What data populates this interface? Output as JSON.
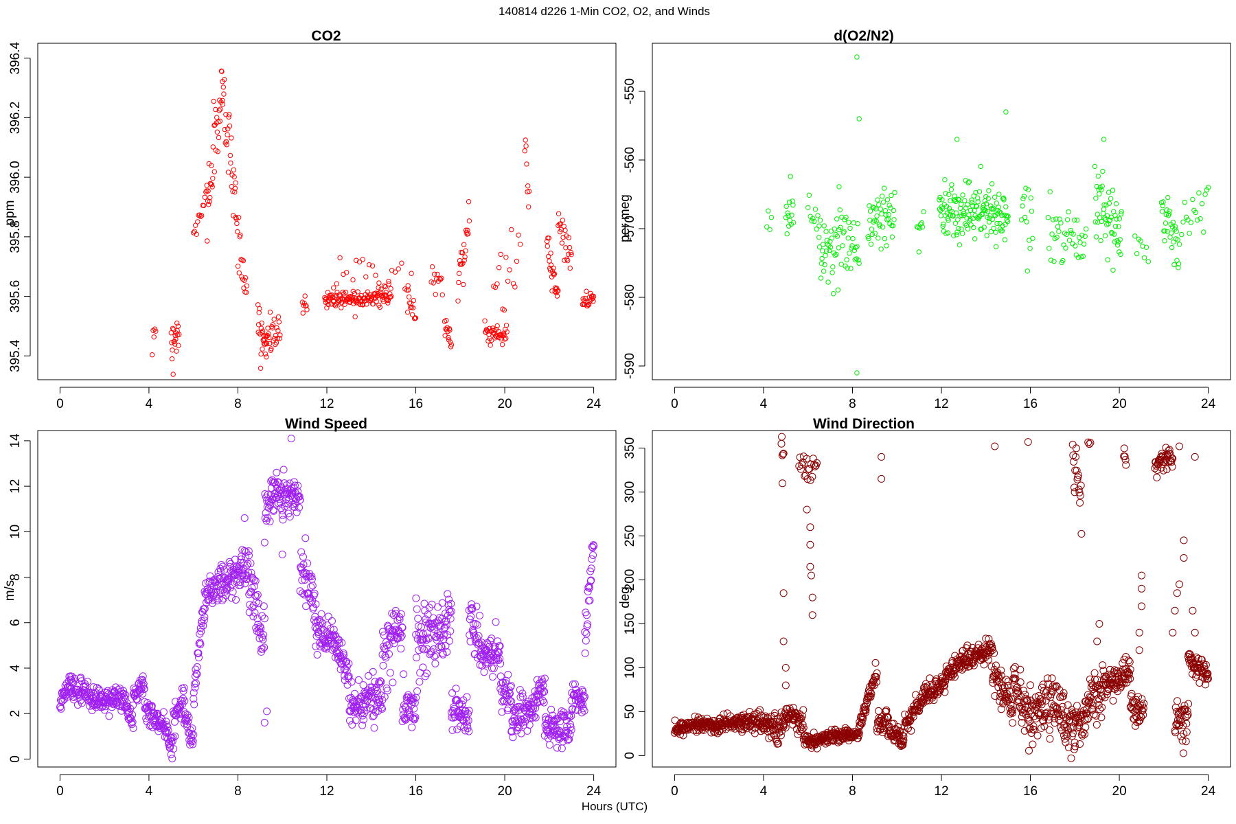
{
  "figure": {
    "suptitle": "140814   d226   1-Min CO2, O2, and Winds",
    "xlabel": "Hours (UTC)"
  },
  "chart_data": [
    {
      "type": "scatter",
      "title": "CO2",
      "ylabel": "ppm",
      "xlabel": "",
      "xlim": [
        -1,
        25
      ],
      "ylim": [
        395.32,
        396.45
      ],
      "xticks": [
        0,
        4,
        8,
        12,
        16,
        20,
        24
      ],
      "yticks": [
        395.4,
        395.6,
        395.8,
        396.0,
        396.2,
        396.4
      ],
      "ytick_labels": [
        "395.4",
        "395.6",
        "395.8",
        "396.0",
        "396.2",
        "396.4"
      ],
      "color": "#ff0000",
      "grid": false,
      "segments": [
        {
          "t0": 4.15,
          "t1": 4.3,
          "v0": 395.47,
          "v1": 395.5,
          "noise": 0.04,
          "n": 5
        },
        {
          "t0": 5.0,
          "t1": 5.35,
          "v0": 395.43,
          "v1": 395.5,
          "noise": 0.06,
          "n": 20
        },
        {
          "t0": 6.0,
          "t1": 6.6,
          "v0": 395.78,
          "v1": 395.95,
          "noise": 0.06,
          "n": 14
        },
        {
          "t0": 6.6,
          "t1": 7.3,
          "v0": 395.9,
          "v1": 396.3,
          "noise": 0.1,
          "n": 35
        },
        {
          "t0": 7.3,
          "t1": 7.9,
          "v0": 396.28,
          "v1": 395.95,
          "noise": 0.1,
          "n": 28
        },
        {
          "t0": 7.9,
          "t1": 8.4,
          "v0": 395.85,
          "v1": 395.62,
          "noise": 0.08,
          "n": 20
        },
        {
          "t0": 8.9,
          "t1": 9.3,
          "v0": 395.5,
          "v1": 395.43,
          "noise": 0.05,
          "n": 25
        },
        {
          "t0": 9.3,
          "t1": 9.9,
          "v0": 395.48,
          "v1": 395.47,
          "noise": 0.05,
          "n": 25
        },
        {
          "t0": 10.9,
          "t1": 11.1,
          "v0": 395.57,
          "v1": 395.58,
          "noise": 0.03,
          "n": 8
        },
        {
          "t0": 11.9,
          "t1": 14.9,
          "v0": 395.59,
          "v1": 395.6,
          "noise": 0.025,
          "n": 130
        },
        {
          "t0": 12.3,
          "t1": 15.8,
          "v0": 395.66,
          "v1": 395.67,
          "noise": 0.06,
          "n": 25
        },
        {
          "t0": 15.6,
          "t1": 16.0,
          "v0": 395.6,
          "v1": 395.54,
          "noise": 0.03,
          "n": 14
        },
        {
          "t0": 16.7,
          "t1": 17.2,
          "v0": 395.64,
          "v1": 395.67,
          "noise": 0.06,
          "n": 12
        },
        {
          "t0": 17.3,
          "t1": 17.6,
          "v0": 395.5,
          "v1": 395.46,
          "noise": 0.03,
          "n": 14
        },
        {
          "t0": 17.9,
          "t1": 18.4,
          "v0": 395.65,
          "v1": 395.85,
          "noise": 0.07,
          "n": 22
        },
        {
          "t0": 19.1,
          "t1": 20.1,
          "v0": 395.48,
          "v1": 395.47,
          "noise": 0.03,
          "n": 40
        },
        {
          "t0": 19.5,
          "t1": 20.7,
          "v0": 395.6,
          "v1": 395.78,
          "noise": 0.1,
          "n": 16
        },
        {
          "t0": 20.9,
          "t1": 21.1,
          "v0": 396.1,
          "v1": 395.95,
          "noise": 0.08,
          "n": 8
        },
        {
          "t0": 21.9,
          "t1": 22.4,
          "v0": 395.75,
          "v1": 395.6,
          "noise": 0.05,
          "n": 25
        },
        {
          "t0": 22.4,
          "t1": 23.0,
          "v0": 395.85,
          "v1": 395.7,
          "noise": 0.07,
          "n": 22
        },
        {
          "t0": 23.5,
          "t1": 24.0,
          "v0": 395.58,
          "v1": 395.6,
          "noise": 0.02,
          "n": 22
        }
      ]
    },
    {
      "type": "scatter",
      "title": "d(O2/N2)",
      "ylabel": "per meg",
      "xlabel": "",
      "xlim": [
        -1,
        25
      ],
      "ylim": [
        -592,
        -543
      ],
      "xticks": [
        0,
        4,
        8,
        12,
        16,
        20,
        24
      ],
      "yticks": [
        -590,
        -580,
        -570,
        -560,
        -550
      ],
      "ytick_labels": [
        "-590",
        "-580",
        "-570",
        "-560",
        "-550"
      ],
      "color": "#00ee00",
      "grid": false,
      "segments": [
        {
          "t0": 4.15,
          "t1": 4.35,
          "v0": -569,
          "v1": -569,
          "noise": 2,
          "n": 4
        },
        {
          "t0": 5.0,
          "t1": 5.35,
          "v0": -568,
          "v1": -567,
          "noise": 3,
          "n": 14
        },
        {
          "t0": 6.0,
          "t1": 6.5,
          "v0": -567,
          "v1": -569,
          "noise": 3,
          "n": 10
        },
        {
          "t0": 6.5,
          "t1": 7.4,
          "v0": -572,
          "v1": -574,
          "noise": 4,
          "n": 36
        },
        {
          "t0": 7.4,
          "t1": 8.3,
          "v0": -570,
          "v1": -572,
          "noise": 5,
          "n": 30
        },
        {
          "t0": 8.7,
          "t1": 9.9,
          "v0": -570,
          "v1": -567,
          "noise": 4.5,
          "n": 46
        },
        {
          "t0": 10.9,
          "t1": 11.2,
          "v0": -569,
          "v1": -571,
          "noise": 3,
          "n": 8
        },
        {
          "t0": 11.9,
          "t1": 15.0,
          "v0": -567,
          "v1": -568,
          "noise": 3.5,
          "n": 150
        },
        {
          "t0": 15.6,
          "t1": 16.1,
          "v0": -567,
          "v1": -569,
          "noise": 3.5,
          "n": 14
        },
        {
          "t0": 16.8,
          "t1": 18.5,
          "v0": -570,
          "v1": -571,
          "noise": 3,
          "n": 40
        },
        {
          "t0": 18.9,
          "t1": 20.1,
          "v0": -567,
          "v1": -571,
          "noise": 3.5,
          "n": 55
        },
        {
          "t0": 20.7,
          "t1": 21.3,
          "v0": -572,
          "v1": -574,
          "noise": 2,
          "n": 8
        },
        {
          "t0": 21.9,
          "t1": 22.7,
          "v0": -567,
          "v1": -573,
          "noise": 4,
          "n": 32
        },
        {
          "t0": 22.8,
          "t1": 24.0,
          "v0": -570,
          "v1": -566,
          "noise": 3,
          "n": 18
        }
      ],
      "outliers": [
        [
          8.2,
          -545
        ],
        [
          8.3,
          -554
        ],
        [
          8.2,
          -591
        ],
        [
          14.9,
          -553
        ],
        [
          19.3,
          -557
        ],
        [
          12.7,
          -557
        ]
      ]
    },
    {
      "type": "scatter",
      "title": "Wind Speed",
      "ylabel": "m/s",
      "xlabel": "",
      "xlim": [
        -1,
        25
      ],
      "ylim": [
        -0.35,
        14.45
      ],
      "xticks": [
        0,
        4,
        8,
        12,
        16,
        20,
        24
      ],
      "yticks": [
        0,
        2,
        4,
        6,
        8,
        10,
        12,
        14
      ],
      "ytick_labels": [
        "0",
        "2",
        "4",
        "6",
        "8",
        "10",
        "12",
        "14"
      ],
      "color": "#a020f0",
      "grid": false,
      "segments": [
        {
          "t0": 0.0,
          "t1": 0.5,
          "v0": 2.5,
          "v1": 3.4,
          "noise": 0.4,
          "n": 30
        },
        {
          "t0": 0.5,
          "t1": 2.0,
          "v0": 3.1,
          "v1": 2.5,
          "noise": 0.45,
          "n": 90
        },
        {
          "t0": 2.0,
          "t1": 3.0,
          "v0": 2.7,
          "v1": 2.6,
          "noise": 0.5,
          "n": 60
        },
        {
          "t0": 3.0,
          "t1": 3.3,
          "v0": 2.2,
          "v1": 1.5,
          "noise": 0.4,
          "n": 18
        },
        {
          "t0": 3.3,
          "t1": 3.8,
          "v0": 2.8,
          "v1": 3.3,
          "noise": 0.45,
          "n": 30
        },
        {
          "t0": 3.8,
          "t1": 4.8,
          "v0": 2.2,
          "v1": 1.3,
          "noise": 0.5,
          "n": 60
        },
        {
          "t0": 4.8,
          "t1": 5.1,
          "v0": 0.9,
          "v1": 0.6,
          "noise": 0.4,
          "n": 18
        },
        {
          "t0": 5.1,
          "t1": 5.6,
          "v0": 1.8,
          "v1": 2.8,
          "noise": 0.5,
          "n": 30
        },
        {
          "t0": 5.6,
          "t1": 6.0,
          "v0": 1.8,
          "v1": 1.0,
          "noise": 0.5,
          "n": 24
        },
        {
          "t0": 6.0,
          "t1": 6.5,
          "v0": 3.0,
          "v1": 6.5,
          "noise": 0.7,
          "n": 30
        },
        {
          "t0": 6.5,
          "t1": 7.5,
          "v0": 7.3,
          "v1": 7.9,
          "noise": 0.7,
          "n": 60
        },
        {
          "t0": 7.5,
          "t1": 8.5,
          "v0": 7.8,
          "v1": 8.6,
          "noise": 0.7,
          "n": 60
        },
        {
          "t0": 8.5,
          "t1": 9.2,
          "v0": 7.8,
          "v1": 5.2,
          "noise": 1.1,
          "n": 42
        },
        {
          "t0": 9.2,
          "t1": 9.6,
          "v0": 10.5,
          "v1": 12.0,
          "noise": 0.8,
          "n": 24
        },
        {
          "t0": 9.6,
          "t1": 10.8,
          "v0": 11.8,
          "v1": 11.5,
          "noise": 0.7,
          "n": 72
        },
        {
          "t0": 10.8,
          "t1": 11.5,
          "v0": 8.5,
          "v1": 7.0,
          "noise": 0.9,
          "n": 42
        },
        {
          "t0": 11.5,
          "t1": 12.5,
          "v0": 5.8,
          "v1": 5.0,
          "noise": 0.6,
          "n": 60
        },
        {
          "t0": 12.5,
          "t1": 13.0,
          "v0": 4.8,
          "v1": 3.5,
          "noise": 0.6,
          "n": 30
        },
        {
          "t0": 13.0,
          "t1": 14.5,
          "v0": 2.2,
          "v1": 2.8,
          "noise": 0.8,
          "n": 90
        },
        {
          "t0": 14.5,
          "t1": 15.4,
          "v0": 4.2,
          "v1": 6.2,
          "noise": 1.2,
          "n": 54
        },
        {
          "t0": 15.4,
          "t1": 16.0,
          "v0": 2.5,
          "v1": 2.2,
          "noise": 0.8,
          "n": 36
        },
        {
          "t0": 16.0,
          "t1": 17.6,
          "v0": 5.2,
          "v1": 6.0,
          "noise": 1.3,
          "n": 96
        },
        {
          "t0": 17.6,
          "t1": 18.4,
          "v0": 2.2,
          "v1": 1.8,
          "noise": 0.7,
          "n": 48
        },
        {
          "t0": 18.4,
          "t1": 18.9,
          "v0": 6.5,
          "v1": 5.0,
          "noise": 1.3,
          "n": 30
        },
        {
          "t0": 18.9,
          "t1": 19.8,
          "v0": 4.6,
          "v1": 4.7,
          "noise": 0.6,
          "n": 54
        },
        {
          "t0": 19.8,
          "t1": 20.3,
          "v0": 3.2,
          "v1": 2.5,
          "noise": 0.7,
          "n": 30
        },
        {
          "t0": 20.3,
          "t1": 21.0,
          "v0": 1.5,
          "v1": 2.2,
          "noise": 0.7,
          "n": 42
        },
        {
          "t0": 21.0,
          "t1": 21.8,
          "v0": 2.0,
          "v1": 3.0,
          "noise": 0.8,
          "n": 48
        },
        {
          "t0": 21.8,
          "t1": 23.0,
          "v0": 1.4,
          "v1": 1.3,
          "noise": 0.7,
          "n": 72
        },
        {
          "t0": 23.0,
          "t1": 23.6,
          "v0": 2.8,
          "v1": 2.5,
          "noise": 0.5,
          "n": 36
        },
        {
          "t0": 23.6,
          "t1": 24.0,
          "v0": 5.0,
          "v1": 9.5,
          "noise": 0.8,
          "n": 24
        }
      ],
      "outliers": [
        [
          8.3,
          10.6
        ],
        [
          9.2,
          1.6
        ],
        [
          9.3,
          2.1
        ],
        [
          10.0,
          9.0
        ],
        [
          10.4,
          14.1
        ]
      ]
    },
    {
      "type": "scatter",
      "title": "Wind Direction",
      "ylabel": "deg",
      "xlabel": "",
      "xlim": [
        -1,
        25
      ],
      "ylim": [
        -13,
        370
      ],
      "xticks": [
        0,
        4,
        8,
        12,
        16,
        20,
        24
      ],
      "yticks": [
        0,
        50,
        100,
        150,
        200,
        250,
        300,
        350
      ],
      "ytick_labels": [
        "0",
        "50",
        "100",
        "150",
        "200",
        "250",
        "300",
        "350"
      ],
      "color": "#8b0000",
      "grid": false,
      "segments": [
        {
          "t0": 0.0,
          "t1": 1.0,
          "v0": 28,
          "v1": 38,
          "noise": 7,
          "n": 60
        },
        {
          "t0": 1.0,
          "t1": 2.0,
          "v0": 38,
          "v1": 32,
          "noise": 7,
          "n": 60
        },
        {
          "t0": 2.0,
          "t1": 3.0,
          "v0": 35,
          "v1": 38,
          "noise": 7,
          "n": 60
        },
        {
          "t0": 3.0,
          "t1": 4.0,
          "v0": 38,
          "v1": 40,
          "noise": 8,
          "n": 60
        },
        {
          "t0": 4.0,
          "t1": 4.6,
          "v0": 35,
          "v1": 30,
          "noise": 12,
          "n": 36
        },
        {
          "t0": 4.6,
          "t1": 5.0,
          "v0": 25,
          "v1": 40,
          "noise": 15,
          "n": 24
        },
        {
          "t0": 5.0,
          "t1": 5.3,
          "v0": 45,
          "v1": 48,
          "noise": 10,
          "n": 18
        },
        {
          "t0": 5.3,
          "t1": 5.8,
          "v0": 45,
          "v1": 35,
          "noise": 10,
          "n": 30
        },
        {
          "t0": 5.8,
          "t1": 6.4,
          "v0": 20,
          "v1": 15,
          "noise": 8,
          "n": 36
        },
        {
          "t0": 6.4,
          "t1": 7.8,
          "v0": 18,
          "v1": 25,
          "noise": 6,
          "n": 84
        },
        {
          "t0": 7.8,
          "t1": 8.3,
          "v0": 22,
          "v1": 25,
          "noise": 5,
          "n": 30
        },
        {
          "t0": 8.3,
          "t1": 9.1,
          "v0": 35,
          "v1": 95,
          "noise": 8,
          "n": 48
        },
        {
          "t0": 9.1,
          "t1": 9.6,
          "v0": 30,
          "v1": 45,
          "noise": 12,
          "n": 30
        },
        {
          "t0": 9.6,
          "t1": 10.3,
          "v0": 30,
          "v1": 20,
          "noise": 10,
          "n": 42
        },
        {
          "t0": 10.3,
          "t1": 11.3,
          "v0": 30,
          "v1": 70,
          "noise": 8,
          "n": 60
        },
        {
          "t0": 11.3,
          "t1": 12.0,
          "v0": 70,
          "v1": 75,
          "noise": 10,
          "n": 42
        },
        {
          "t0": 12.0,
          "t1": 13.0,
          "v0": 82,
          "v1": 110,
          "noise": 12,
          "n": 60
        },
        {
          "t0": 13.0,
          "t1": 14.3,
          "v0": 110,
          "v1": 120,
          "noise": 10,
          "n": 78
        },
        {
          "t0": 14.3,
          "t1": 15.2,
          "v0": 95,
          "v1": 55,
          "noise": 18,
          "n": 54
        },
        {
          "t0": 15.2,
          "t1": 16.0,
          "v0": 85,
          "v1": 40,
          "noise": 25,
          "n": 48
        },
        {
          "t0": 16.0,
          "t1": 17.5,
          "v0": 50,
          "v1": 60,
          "noise": 25,
          "n": 90
        },
        {
          "t0": 17.5,
          "t1": 18.5,
          "v0": 30,
          "v1": 40,
          "noise": 22,
          "n": 60
        },
        {
          "t0": 18.5,
          "t1": 19.5,
          "v0": 60,
          "v1": 80,
          "noise": 25,
          "n": 60
        },
        {
          "t0": 19.5,
          "t1": 20.5,
          "v0": 80,
          "v1": 95,
          "noise": 15,
          "n": 60
        },
        {
          "t0": 20.5,
          "t1": 21.1,
          "v0": 60,
          "v1": 45,
          "noise": 15,
          "n": 36
        },
        {
          "t0": 22.5,
          "t1": 23.1,
          "v0": 40,
          "v1": 40,
          "noise": 20,
          "n": 36
        },
        {
          "t0": 23.1,
          "t1": 24.0,
          "v0": 110,
          "v1": 90,
          "noise": 10,
          "n": 54
        }
      ],
      "wrap_clusters": [
        {
          "t0": 4.8,
          "t1": 4.9,
          "v0": 355,
          "v1": 340,
          "noise": 8,
          "n": 5
        },
        {
          "t0": 5.6,
          "t1": 6.4,
          "v0": 330,
          "v1": 320,
          "noise": 14,
          "n": 20
        },
        {
          "t0": 17.9,
          "t1": 18.3,
          "v0": 345,
          "v1": 290,
          "noise": 25,
          "n": 18
        },
        {
          "t0": 18.6,
          "t1": 18.7,
          "v0": 355,
          "v1": 355,
          "noise": 2,
          "n": 3
        },
        {
          "t0": 20.2,
          "t1": 20.3,
          "v0": 345,
          "v1": 335,
          "noise": 6,
          "n": 5
        },
        {
          "t0": 21.6,
          "t1": 22.4,
          "v0": 330,
          "v1": 340,
          "noise": 10,
          "n": 40
        }
      ],
      "outliers": [
        [
          4.9,
          185
        ],
        [
          4.9,
          130
        ],
        [
          5.0,
          100
        ],
        [
          5.0,
          80
        ],
        [
          4.85,
          310
        ],
        [
          9.3,
          340
        ],
        [
          9.3,
          315
        ],
        [
          14.4,
          352
        ],
        [
          15.9,
          357
        ],
        [
          22.7,
          352
        ],
        [
          23.4,
          340
        ],
        [
          6.1,
          260
        ],
        [
          6.1,
          240
        ],
        [
          6.1,
          215
        ],
        [
          6.15,
          205
        ],
        [
          6.2,
          180
        ],
        [
          6.2,
          160
        ],
        [
          5.95,
          280
        ],
        [
          21.0,
          205
        ],
        [
          21.0,
          190
        ],
        [
          21.0,
          170
        ],
        [
          20.9,
          140
        ],
        [
          20.9,
          120
        ],
        [
          22.9,
          245
        ],
        [
          22.9,
          225
        ],
        [
          22.7,
          195
        ],
        [
          22.6,
          185
        ],
        [
          22.5,
          165
        ],
        [
          22.4,
          140
        ],
        [
          23.3,
          165
        ],
        [
          23.4,
          140
        ],
        [
          19.0,
          130
        ],
        [
          19.1,
          150
        ]
      ]
    }
  ]
}
